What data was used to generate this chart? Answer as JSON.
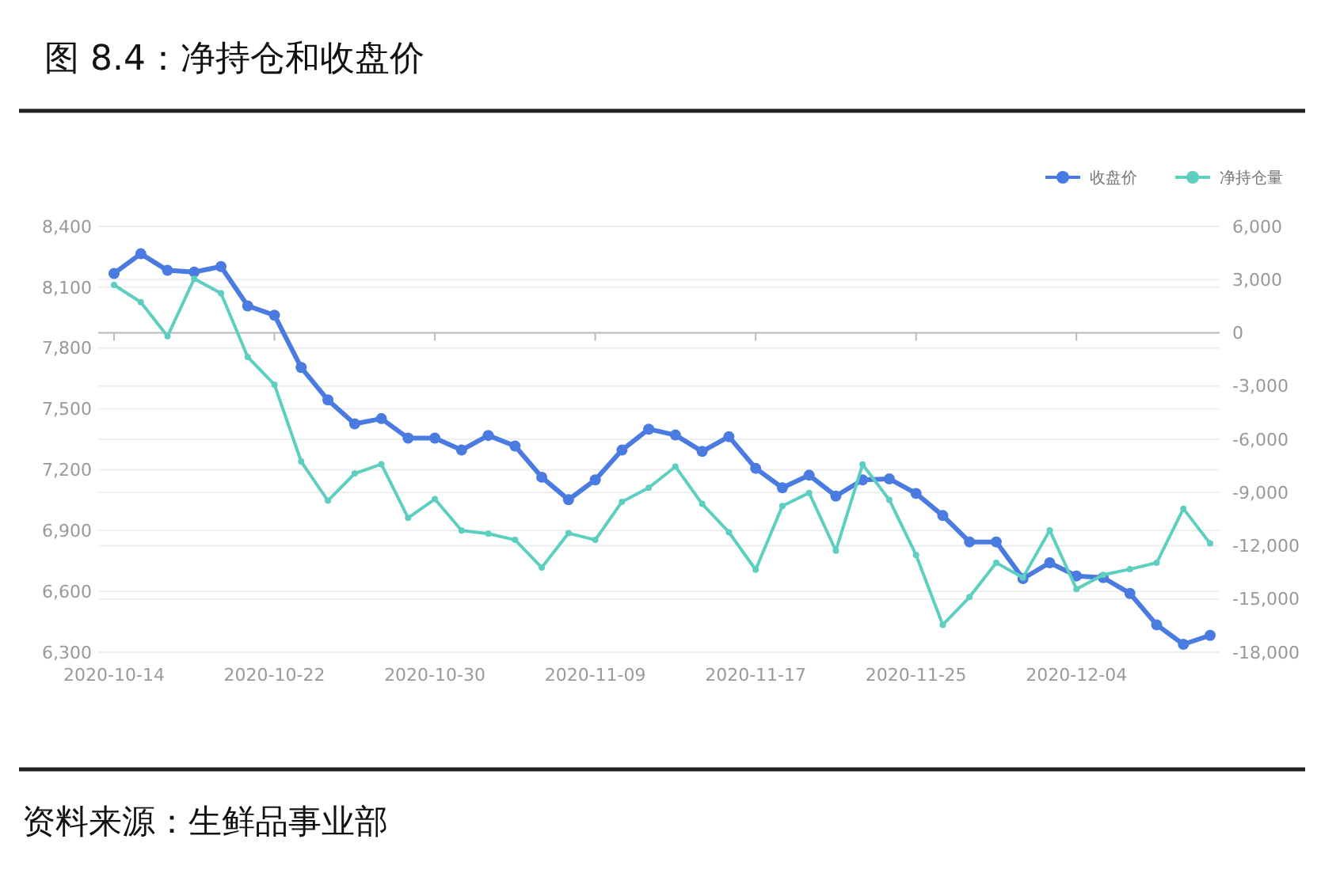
{
  "chart_data": {
    "type": "line",
    "title": "图 8.4：净持仓和收盘价",
    "categories": [
      "2020-10-14",
      null,
      null,
      null,
      null,
      null,
      "2020-10-22",
      null,
      null,
      null,
      null,
      null,
      "2020-10-30",
      null,
      null,
      null,
      null,
      null,
      "2020-11-09",
      null,
      null,
      null,
      null,
      null,
      "2020-11-17",
      null,
      null,
      null,
      null,
      null,
      "2020-11-25",
      null,
      null,
      null,
      null,
      null,
      "2020-12-04",
      null,
      null,
      null,
      null,
      null
    ],
    "series": [
      {
        "name": "收盘价",
        "color": "#4a7be0",
        "values": [
          8168,
          8265,
          8183,
          8175,
          8202,
          8008,
          7962,
          7704,
          7544,
          7426,
          7452,
          7356,
          7356,
          7297,
          7369,
          7317,
          7163,
          7052,
          7150,
          7297,
          7400,
          7371,
          7290,
          7363,
          7207,
          7111,
          7173,
          7070,
          7150,
          7155,
          7083,
          6974,
          6844,
          6844,
          6663,
          6741,
          6676,
          6668,
          6590,
          6435,
          6339,
          6383
        ]
      },
      {
        "name": "净持仓量",
        "color": "#5ccfc0",
        "axis": "y2",
        "values": [
          2700,
          1730,
          -190,
          3050,
          2230,
          -1360,
          -2920,
          -7250,
          -9460,
          -7930,
          -7400,
          -10430,
          -9370,
          -11140,
          -11320,
          -11670,
          -13230,
          -11290,
          -11670,
          -9520,
          -8730,
          -7540,
          -9640,
          -11240,
          -13350,
          -9760,
          -9020,
          -12280,
          -7420,
          -9410,
          -12520,
          -16460,
          -14890,
          -12960,
          -13790,
          -11130,
          -14440,
          -13640,
          -13320,
          -12960,
          -9910,
          -11870
        ]
      }
    ],
    "ylim": [
      6300,
      8400
    ],
    "yticks": [
      {
        "value": 6300,
        "label": "6,300"
      },
      {
        "value": 6600,
        "label": "6,600"
      },
      {
        "value": 6900,
        "label": "6,900"
      },
      {
        "value": 7200,
        "label": "7,200"
      },
      {
        "value": 7500,
        "label": "7,500"
      },
      {
        "value": 7800,
        "label": "7,800"
      },
      {
        "value": 8100,
        "label": "8,100"
      },
      {
        "value": 8400,
        "label": "8,400"
      }
    ],
    "y2lim": [
      -18000,
      6000
    ],
    "y2ticks": [
      {
        "value": -18000,
        "label": "-18,000"
      },
      {
        "value": -15000,
        "label": "-15,000"
      },
      {
        "value": -12000,
        "label": "-12,000"
      },
      {
        "value": -9000,
        "label": "-9,000"
      },
      {
        "value": -6000,
        "label": "-6,000"
      },
      {
        "value": -3000,
        "label": "-3,000"
      },
      0,
      {
        "value": 3000,
        "label": "3,000"
      },
      {
        "value": 6000,
        "label": "6,000"
      }
    ],
    "grid": "y",
    "legend": "top right",
    "marker": "circle",
    "line_style": "solid",
    "annotations": [
      "资料来源：生鲜品事业部"
    ]
  }
}
